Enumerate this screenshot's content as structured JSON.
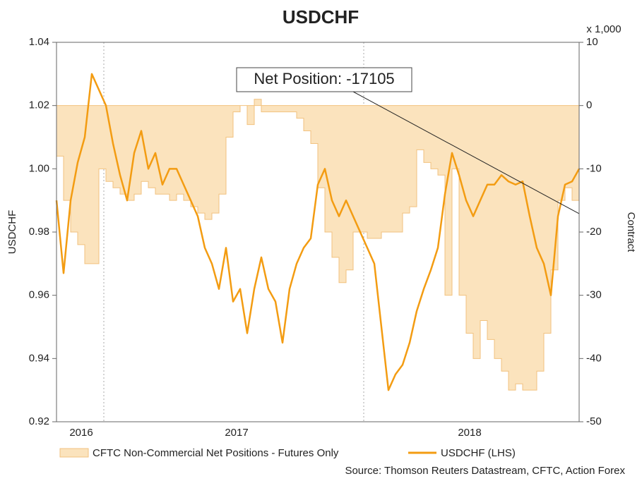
{
  "chart_data": {
    "type": "line",
    "title": "USDCHF",
    "y_label": "USDCHF",
    "y2_label": "Contract",
    "y2_unit": "x 1,000",
    "source": "Source: Thomson Reuters Datastream, CFTC, Action Forex",
    "annotation": "Net Position: -17105",
    "x": [
      0,
      1,
      2,
      3,
      4,
      5,
      6,
      7,
      8,
      9,
      10,
      11,
      12,
      13,
      14,
      15,
      16,
      17,
      18,
      19,
      20,
      21,
      22,
      23,
      24,
      25,
      26,
      27,
      28,
      29,
      30,
      31,
      32,
      33,
      34,
      35,
      36,
      37,
      38,
      39,
      40,
      41,
      42,
      43,
      44,
      45,
      46,
      47,
      48,
      49,
      50,
      51,
      52,
      53,
      54,
      55,
      56,
      57,
      58,
      59,
      60,
      61,
      62,
      63,
      64,
      65,
      66,
      67,
      68,
      69,
      70,
      71,
      72,
      73,
      74
    ],
    "xlim": [
      0,
      74
    ],
    "xticks": [
      {
        "value": 3.5,
        "label": "2016"
      },
      {
        "value": 25.5,
        "label": "2017"
      },
      {
        "value": 58.5,
        "label": "2018"
      }
    ],
    "xgrid": [
      6.7,
      43.5
    ],
    "ylim": [
      0.92,
      1.04
    ],
    "yticks": [
      0.92,
      0.94,
      0.96,
      0.98,
      {
        "value": 1,
        "label": "1.00"
      },
      1.02,
      1.04
    ],
    "y2lim": [
      -50,
      10
    ],
    "y2ticks": [
      -50,
      -40,
      -30,
      -20,
      -10,
      0,
      10
    ],
    "series": [
      {
        "name": "CFTC Non-Commercial Net Positions - Futures Only",
        "kind": "area",
        "axis": "y2",
        "color": "#fbe3bd",
        "edge": "#f2c27f",
        "values": [
          -8,
          -15,
          -20,
          -22,
          -25,
          -25,
          -10,
          -12,
          -13,
          -14,
          -15,
          -14,
          -12,
          -13,
          -14,
          -14,
          -15,
          -14,
          -15,
          -16,
          -17,
          -18,
          -17,
          -14,
          -5,
          -1,
          0,
          -3,
          1,
          -1,
          -1,
          -1,
          -1,
          -1,
          -2,
          -4,
          -6,
          -13,
          -20,
          -24,
          -28,
          -26,
          -20,
          -20,
          -21,
          -21,
          -20,
          -20,
          -20,
          -17,
          -16,
          -7,
          -9,
          -10,
          -11,
          -30,
          -10,
          -30,
          -36,
          -40,
          -34,
          -37,
          -40,
          -42,
          -45,
          -44,
          -45,
          -45,
          -42,
          -36,
          -26,
          -15,
          -13,
          -15,
          -17.1
        ]
      },
      {
        "name": "USDCHF (LHS)",
        "kind": "line",
        "color": "#f39c12",
        "values": [
          0.99,
          0.967,
          0.99,
          1.002,
          1.01,
          1.03,
          1.025,
          1.02,
          1.008,
          0.998,
          0.99,
          1.005,
          1.012,
          1.0,
          1.005,
          0.995,
          1.0,
          1.0,
          0.995,
          0.99,
          0.985,
          0.975,
          0.97,
          0.962,
          0.975,
          0.958,
          0.962,
          0.948,
          0.962,
          0.972,
          0.962,
          0.958,
          0.945,
          0.962,
          0.97,
          0.975,
          0.978,
          0.995,
          1.0,
          0.99,
          0.985,
          0.99,
          0.985,
          0.98,
          0.975,
          0.97,
          0.95,
          0.93,
          0.935,
          0.938,
          0.945,
          0.955,
          0.962,
          0.968,
          0.975,
          0.992,
          1.005,
          0.998,
          0.99,
          0.985,
          0.99,
          0.995,
          0.995,
          0.998,
          0.996,
          0.995,
          0.996,
          0.985,
          0.975,
          0.97,
          0.96,
          0.985,
          0.995,
          0.996,
          1.0
        ]
      }
    ]
  }
}
